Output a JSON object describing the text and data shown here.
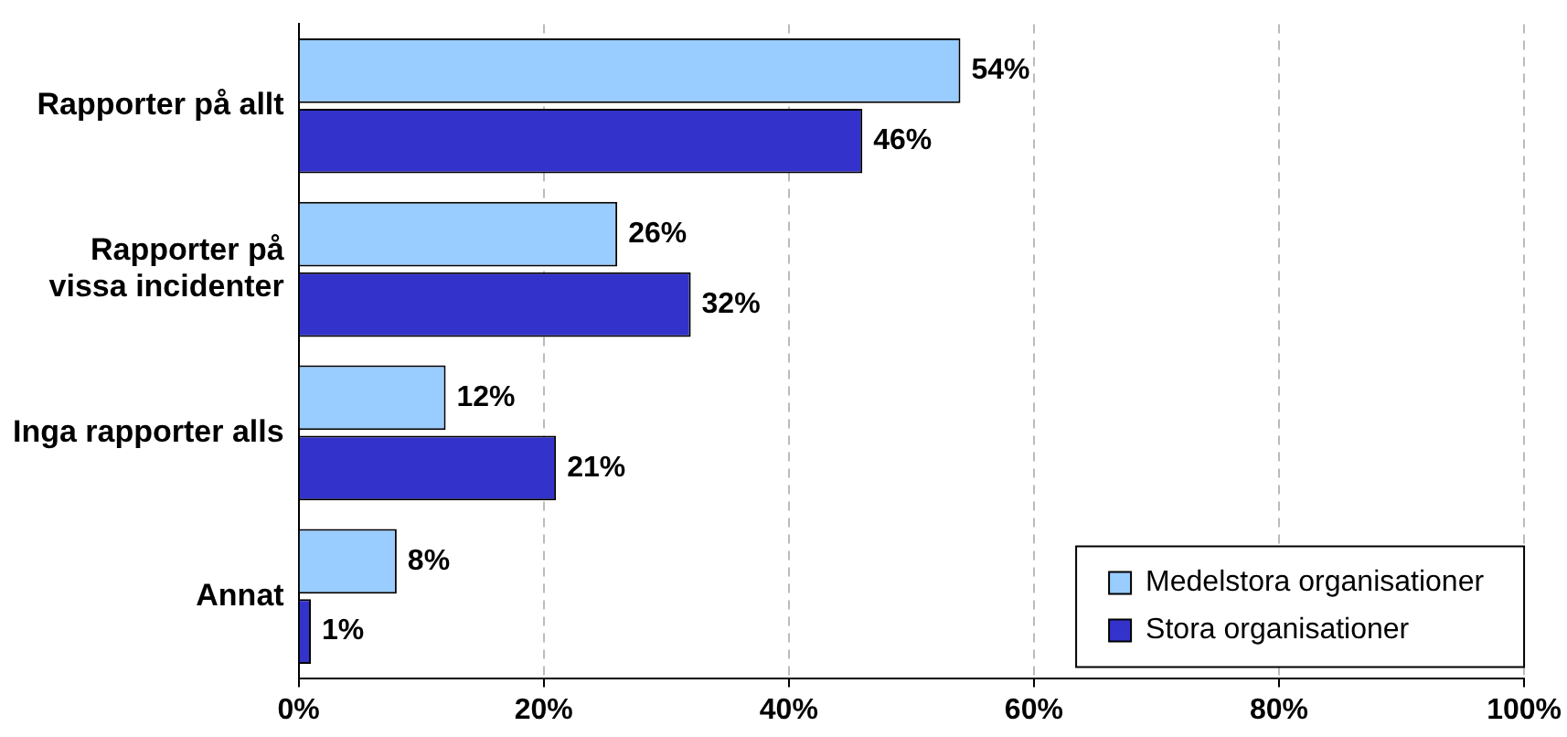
{
  "chart_data": {
    "type": "bar",
    "orientation": "horizontal",
    "categories": [
      "Rapporter på allt",
      "Rapporter på vissa incidenter",
      "Inga rapporter alls",
      "Annat"
    ],
    "series": [
      {
        "name": "Medelstora organisationer",
        "color": "#99ccff",
        "values": [
          54,
          26,
          12,
          8
        ],
        "value_labels": [
          "54%",
          "26%",
          "12%",
          "8%"
        ]
      },
      {
        "name": "Stora organisationer",
        "color": "#3333cc",
        "values": [
          46,
          32,
          21,
          1
        ],
        "value_labels": [
          "46%",
          "32%",
          "21%",
          "1%"
        ]
      }
    ],
    "xlim": [
      0,
      100
    ],
    "xticks": [
      {
        "value": 0,
        "label": "0%"
      },
      {
        "value": 20,
        "label": "20%"
      },
      {
        "value": 40,
        "label": "40%"
      },
      {
        "value": 60,
        "label": "60%"
      },
      {
        "value": 80,
        "label": "80%"
      },
      {
        "value": 100,
        "label": "100%"
      }
    ],
    "grid": "x",
    "legend": "bottom right"
  }
}
